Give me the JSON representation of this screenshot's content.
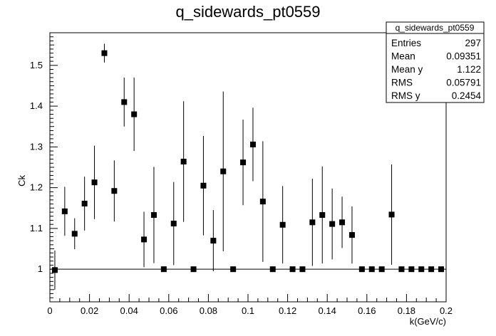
{
  "chart_data": {
    "type": "scatter",
    "title": "q_sidewards_pt0559",
    "xlabel": "k(GeV/c)",
    "ylabel": "Ck",
    "xlim": [
      0,
      0.2
    ],
    "ylim": [
      0.92,
      1.58
    ],
    "x_ticks": [
      0,
      0.02,
      0.04,
      0.06,
      0.08,
      0.1,
      0.12,
      0.14,
      0.16,
      0.18,
      0.2
    ],
    "x_tick_labels": [
      "0",
      "0.02",
      "0.04",
      "0.06",
      "0.08",
      "0.1",
      "0.12",
      "0.14",
      "0.16",
      "0.18",
      "0.2"
    ],
    "y_ticks": [
      1,
      1.1,
      1.2,
      1.3,
      1.4,
      1.5
    ],
    "y_tick_labels": [
      "1",
      "1.1",
      "1.2",
      "1.3",
      "1.4",
      "1.5"
    ],
    "reference_line": 1,
    "points": [
      {
        "x": 0.0025,
        "y": 0.998,
        "err": 0.048
      },
      {
        "x": 0.0075,
        "y": 1.142,
        "err": 0.06
      },
      {
        "x": 0.0125,
        "y": 1.087,
        "err": 0.038
      },
      {
        "x": 0.0175,
        "y": 1.161,
        "err": 0.066
      },
      {
        "x": 0.0225,
        "y": 1.213,
        "err": 0.09
      },
      {
        "x": 0.0275,
        "y": 1.53,
        "err": 0.023
      },
      {
        "x": 0.0325,
        "y": 1.192,
        "err": 0.075
      },
      {
        "x": 0.0375,
        "y": 1.41,
        "err": 0.06
      },
      {
        "x": 0.0425,
        "y": 1.38,
        "err": 0.09
      },
      {
        "x": 0.0475,
        "y": 1.073,
        "err": 0.068
      },
      {
        "x": 0.0525,
        "y": 1.133,
        "err": 0.118
      },
      {
        "x": 0.0575,
        "y": 1.0,
        "err": 0
      },
      {
        "x": 0.0625,
        "y": 1.112,
        "err": 0.102
      },
      {
        "x": 0.0675,
        "y": 1.264,
        "err": 0.148
      },
      {
        "x": 0.0725,
        "y": 1.0,
        "err": 0
      },
      {
        "x": 0.0775,
        "y": 1.205,
        "err": 0.122
      },
      {
        "x": 0.0825,
        "y": 1.07,
        "err": 0.075
      },
      {
        "x": 0.0875,
        "y": 1.24,
        "err": 0.196
      },
      {
        "x": 0.0925,
        "y": 1.0,
        "err": 0
      },
      {
        "x": 0.0975,
        "y": 1.262,
        "err": 0.105
      },
      {
        "x": 0.1025,
        "y": 1.306,
        "err": 0.09
      },
      {
        "x": 0.1075,
        "y": 1.166,
        "err": 0.148
      },
      {
        "x": 0.1125,
        "y": 1.0,
        "err": 0
      },
      {
        "x": 0.1175,
        "y": 1.109,
        "err": 0.095
      },
      {
        "x": 0.1225,
        "y": 1.0,
        "err": 0
      },
      {
        "x": 0.1275,
        "y": 1.0,
        "err": 0
      },
      {
        "x": 0.1325,
        "y": 1.115,
        "err": 0.107
      },
      {
        "x": 0.1375,
        "y": 1.133,
        "err": 0.119
      },
      {
        "x": 0.1425,
        "y": 1.111,
        "err": 0.087
      },
      {
        "x": 0.1475,
        "y": 1.115,
        "err": 0.063
      },
      {
        "x": 0.1525,
        "y": 1.084,
        "err": 0.07
      },
      {
        "x": 0.1575,
        "y": 1.0,
        "err": 0
      },
      {
        "x": 0.1625,
        "y": 1.0,
        "err": 0
      },
      {
        "x": 0.1675,
        "y": 1.0,
        "err": 0
      },
      {
        "x": 0.1725,
        "y": 1.134,
        "err": 0.123
      },
      {
        "x": 0.1775,
        "y": 1.0,
        "err": 0
      },
      {
        "x": 0.1825,
        "y": 1.0,
        "err": 0
      },
      {
        "x": 0.1875,
        "y": 1.0,
        "err": 0
      },
      {
        "x": 0.1925,
        "y": 1.0,
        "err": 0
      },
      {
        "x": 0.1975,
        "y": 1.0,
        "err": 0
      }
    ],
    "stats_box": {
      "name": "q_sidewards_pt0559",
      "rows": [
        {
          "label": "Entries",
          "value": "297"
        },
        {
          "label": "Mean",
          "value": "0.09351"
        },
        {
          "label": "Mean y",
          "value": "1.122"
        },
        {
          "label": "RMS",
          "value": "0.05791"
        },
        {
          "label": "RMS y",
          "value": "0.2454"
        }
      ]
    },
    "grid": false
  }
}
